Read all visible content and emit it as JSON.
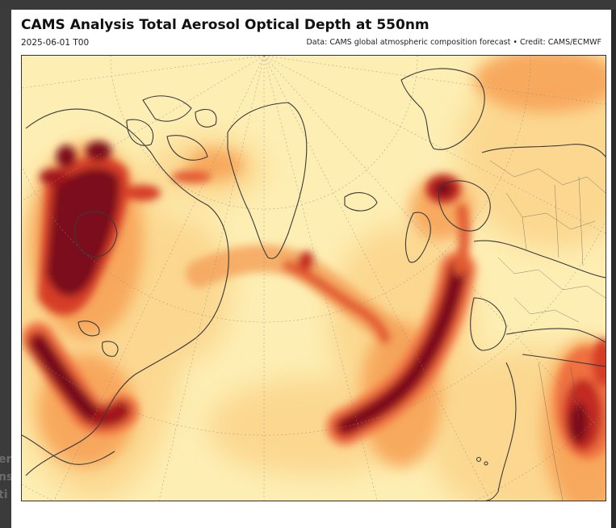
{
  "figure": {
    "title": "CAMS Analysis Total Aerosol Optical Depth at 550nm",
    "valid_time": "2025-06-01 T00",
    "credit": "Data: CAMS global atmospheric composition forecast • Credit: CAMS/ECMWF"
  },
  "map": {
    "projection": "polar stereographic (north)",
    "variable": "total aerosol optical depth",
    "colormap": [
      "#fef6d2",
      "#fde6a2",
      "#fcc978",
      "#f9a45a",
      "#ef7040",
      "#d63c28",
      "#a3161c",
      "#750c1a"
    ]
  },
  "background_window": {
    "ghost_text": [
      "er",
      "ns",
      "ti"
    ]
  }
}
